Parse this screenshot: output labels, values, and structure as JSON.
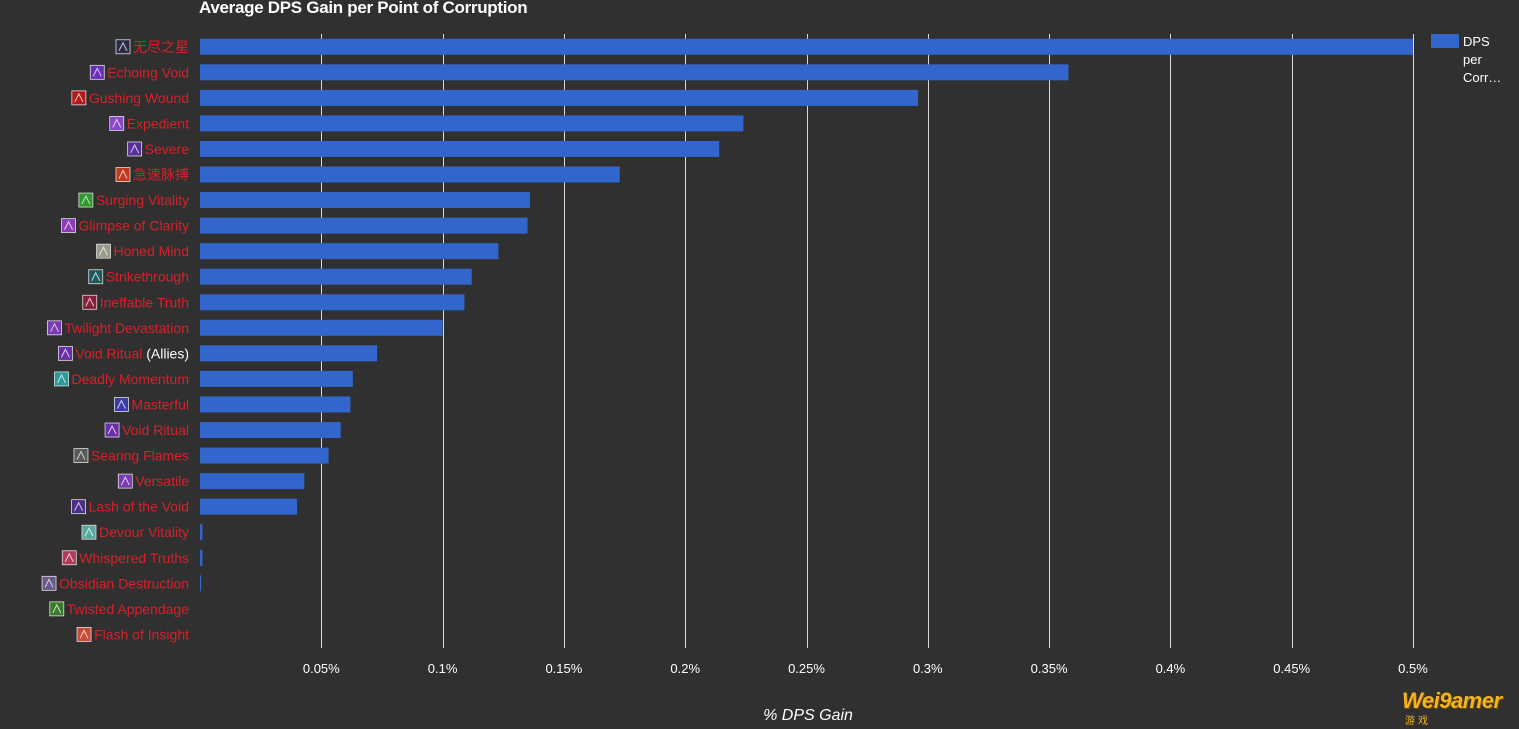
{
  "chart_data": {
    "type": "bar",
    "orientation": "horizontal",
    "title": "Average DPS Gain per Point of Corruption",
    "xlabel": "% DPS Gain",
    "ylabel": "",
    "xlim": [
      0,
      0.5
    ],
    "xticks": [
      0.05,
      0.1,
      0.15,
      0.2,
      0.25,
      0.3,
      0.35,
      0.4,
      0.45,
      0.5
    ],
    "xtick_labels": [
      "0.05%",
      "0.1%",
      "0.15%",
      "0.2%",
      "0.25%",
      "0.3%",
      "0.35%",
      "0.4%",
      "0.45%",
      "0.5%"
    ],
    "grid": true,
    "legend_position": "top-right",
    "series": [
      {
        "name": "DPS per Corr…",
        "color": "#3366cc",
        "values": [
          0.5,
          0.358,
          0.296,
          0.224,
          0.214,
          0.173,
          0.136,
          0.135,
          0.123,
          0.112,
          0.109,
          0.1,
          0.073,
          0.063,
          0.062,
          0.058,
          0.053,
          0.043,
          0.04,
          0.001,
          0.001,
          0.0005,
          0,
          0
        ]
      }
    ],
    "categories": [
      {
        "label": "无尽之星",
        "suffix": "",
        "icon": "endless-star-icon",
        "icon_color": "#2a2a44"
      },
      {
        "label": "Echoing Void",
        "suffix": "",
        "icon": "echoing-void-icon",
        "icon_color": "#6a2fb8"
      },
      {
        "label": "Gushing Wound",
        "suffix": "",
        "icon": "gushing-wound-icon",
        "icon_color": "#b51818"
      },
      {
        "label": "Expedient",
        "suffix": "",
        "icon": "expedient-icon",
        "icon_color": "#8a48c8"
      },
      {
        "label": "Severe",
        "suffix": "",
        "icon": "severe-icon",
        "icon_color": "#5a2e9a"
      },
      {
        "label": "急速脉搏",
        "suffix": "",
        "icon": "racing-pulse-icon",
        "icon_color": "#c0381e"
      },
      {
        "label": "Surging Vitality",
        "suffix": "",
        "icon": "surging-vitality-icon",
        "icon_color": "#2e9a2e"
      },
      {
        "label": "Glimpse of Clarity",
        "suffix": "",
        "icon": "glimpse-of-clarity-icon",
        "icon_color": "#8e3cb8"
      },
      {
        "label": "Honed Mind",
        "suffix": "",
        "icon": "honed-mind-icon",
        "icon_color": "#9a9a8a"
      },
      {
        "label": "Strikethrough",
        "suffix": "",
        "icon": "strikethrough-icon",
        "icon_color": "#1e5a5a"
      },
      {
        "label": "Ineffable Truth",
        "suffix": "",
        "icon": "ineffable-truth-icon",
        "icon_color": "#8a1e3a"
      },
      {
        "label": "Twilight Devastation",
        "suffix": "",
        "icon": "twilight-devastation-icon",
        "icon_color": "#7a3ab0"
      },
      {
        "label": "Void Ritual",
        "suffix": "(Allies)",
        "icon": "void-ritual-allies-icon",
        "icon_color": "#6a2ea8"
      },
      {
        "label": "Deadly Momentum",
        "suffix": "",
        "icon": "deadly-momentum-icon",
        "icon_color": "#2a9a9a"
      },
      {
        "label": "Masterful",
        "suffix": "",
        "icon": "masterful-icon",
        "icon_color": "#3a3aa8"
      },
      {
        "label": "Void Ritual",
        "suffix": "",
        "icon": "void-ritual-icon",
        "icon_color": "#6a2ea8"
      },
      {
        "label": "Searing Flames",
        "suffix": "",
        "icon": "searing-flames-icon",
        "icon_color": "#5a5a5a"
      },
      {
        "label": "Versatile",
        "suffix": "",
        "icon": "versatile-icon",
        "icon_color": "#7a3ab0"
      },
      {
        "label": "Lash of the Void",
        "suffix": "",
        "icon": "lash-of-the-void-icon",
        "icon_color": "#4a2e8a"
      },
      {
        "label": "Devour Vitality",
        "suffix": "",
        "icon": "devour-vitality-icon",
        "icon_color": "#5aa8a0"
      },
      {
        "label": "Whispered Truths",
        "suffix": "",
        "icon": "whispered-truths-icon",
        "icon_color": "#b03a5a"
      },
      {
        "label": "Obsidian Destruction",
        "suffix": "",
        "icon": "obsidian-destruction-icon",
        "icon_color": "#6a5a8a"
      },
      {
        "label": "Twisted Appendage",
        "suffix": "",
        "icon": "twisted-appendage-icon",
        "icon_color": "#3a7a2a"
      },
      {
        "label": "Flash of Insight",
        "suffix": "",
        "icon": "flash-of-insight-icon",
        "icon_color": "#c84a3a"
      }
    ]
  },
  "legend": {
    "label": "DPS per Corr…",
    "color": "#3366cc"
  },
  "watermark": {
    "text": "Wei9amer",
    "sub": "游戏"
  }
}
